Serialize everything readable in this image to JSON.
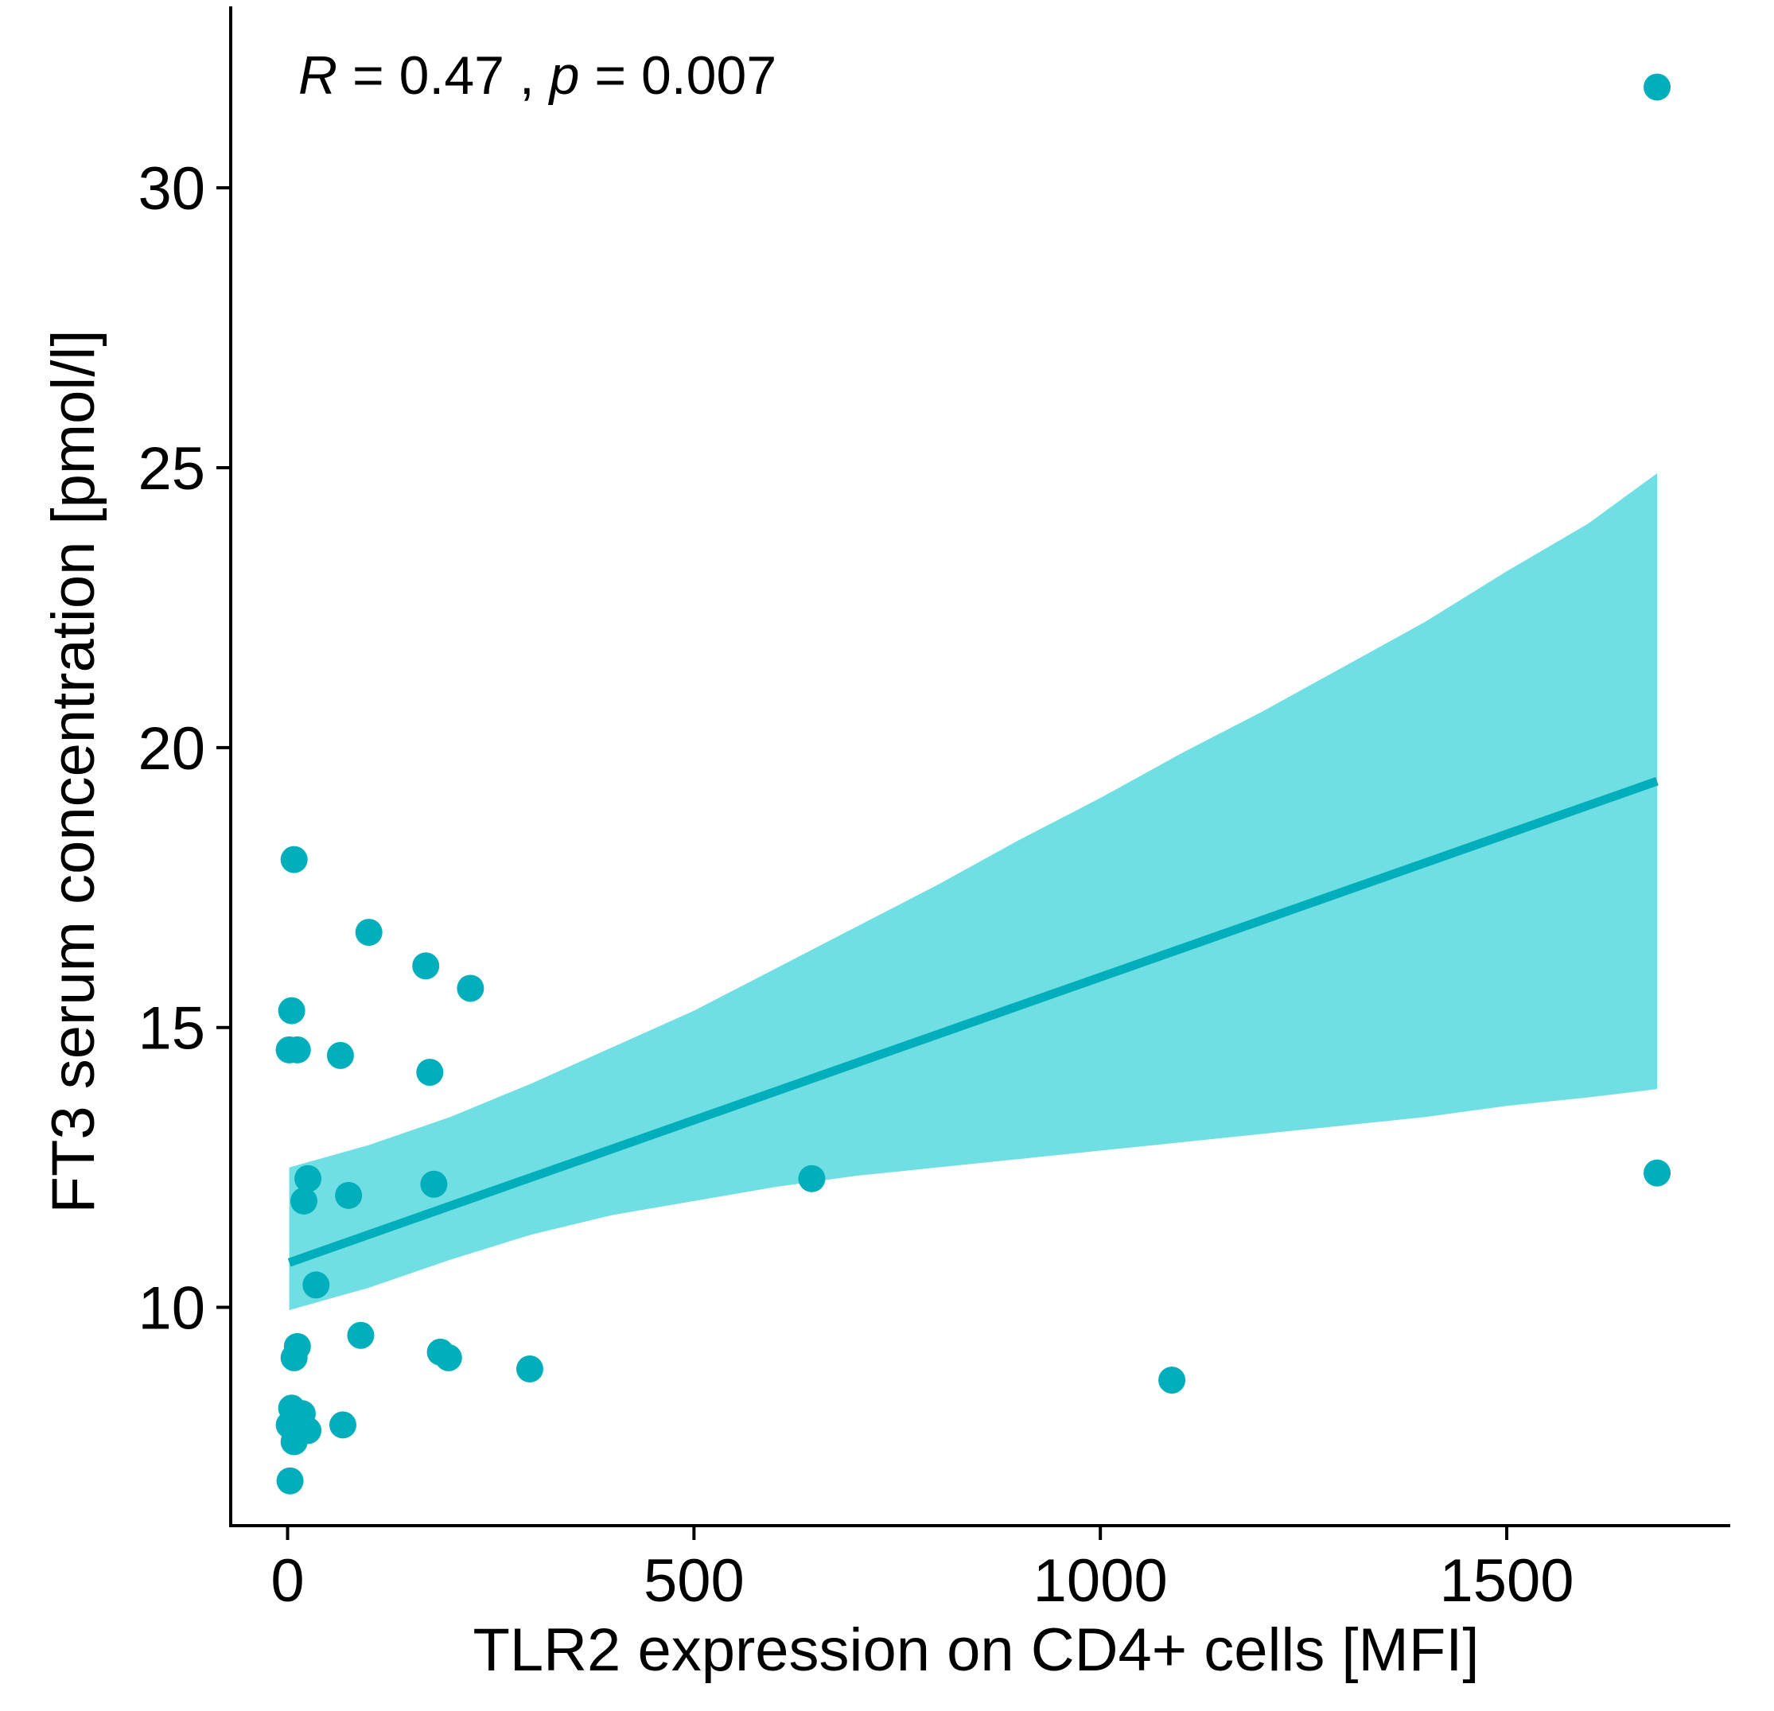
{
  "chart_data": {
    "type": "scatter",
    "title": "",
    "xlabel": "TLR2 expression on CD4+ cells [MFI]",
    "ylabel": "FT3 serum concentration [pmol/l]",
    "xlim": [
      -70,
      1775
    ],
    "ylim": [
      6.1,
      33.1
    ],
    "x_ticks": [
      0,
      500,
      1000,
      1500
    ],
    "x_tick_labels": [
      "0",
      "500",
      "1000",
      "1500"
    ],
    "y_ticks": [
      10,
      15,
      20,
      25,
      30
    ],
    "y_tick_labels": [
      "10",
      "15",
      "20",
      "25",
      "30"
    ],
    "grid": false,
    "legend": "none",
    "colors": {
      "points": "#00AFBB",
      "band": "#70DFE4",
      "line": "#00AFBB",
      "axis": "#000000"
    },
    "annotation": {
      "r_symbol": "R",
      "r_text": " = 0.47 , ",
      "p_symbol": "p",
      "p_text": " = 0.007"
    },
    "points": [
      {
        "x": 8,
        "y": 18.0
      },
      {
        "x": 100,
        "y": 16.7
      },
      {
        "x": 170,
        "y": 16.1
      },
      {
        "x": 225,
        "y": 15.7
      },
      {
        "x": 5,
        "y": 15.3
      },
      {
        "x": 2,
        "y": 14.6
      },
      {
        "x": 12,
        "y": 14.6
      },
      {
        "x": 65,
        "y": 14.5
      },
      {
        "x": 175,
        "y": 14.2
      },
      {
        "x": 25,
        "y": 12.3
      },
      {
        "x": 20,
        "y": 11.9
      },
      {
        "x": 75,
        "y": 12.0
      },
      {
        "x": 180,
        "y": 12.2
      },
      {
        "x": 645,
        "y": 12.3
      },
      {
        "x": 1685,
        "y": 12.4
      },
      {
        "x": 35,
        "y": 10.4
      },
      {
        "x": 90,
        "y": 9.5
      },
      {
        "x": 12,
        "y": 9.3
      },
      {
        "x": 8,
        "y": 9.1
      },
      {
        "x": 188,
        "y": 9.2
      },
      {
        "x": 198,
        "y": 9.1
      },
      {
        "x": 298,
        "y": 8.9
      },
      {
        "x": 1088,
        "y": 8.7
      },
      {
        "x": 5,
        "y": 8.2
      },
      {
        "x": 2,
        "y": 7.9
      },
      {
        "x": 18,
        "y": 8.1
      },
      {
        "x": 25,
        "y": 7.8
      },
      {
        "x": 68,
        "y": 7.9
      },
      {
        "x": 8,
        "y": 7.6
      },
      {
        "x": 3,
        "y": 6.9
      },
      {
        "x": 1685,
        "y": 31.8
      }
    ],
    "fit_line": {
      "x": [
        2,
        1685
      ],
      "y": [
        10.8,
        19.4
      ]
    },
    "ci_band": {
      "x": [
        2,
        100,
        200,
        300,
        400,
        500,
        600,
        700,
        800,
        900,
        1000,
        1100,
        1200,
        1300,
        1400,
        1500,
        1600,
        1685
      ],
      "lower": [
        9.95,
        10.35,
        10.85,
        11.3,
        11.65,
        11.9,
        12.15,
        12.35,
        12.5,
        12.65,
        12.8,
        12.95,
        13.1,
        13.25,
        13.4,
        13.6,
        13.75,
        13.9
      ],
      "upper": [
        12.5,
        12.9,
        13.4,
        14.0,
        14.65,
        15.3,
        16.05,
        16.8,
        17.55,
        18.35,
        19.1,
        19.9,
        20.65,
        21.45,
        22.25,
        23.15,
        24.0,
        24.9
      ]
    }
  }
}
